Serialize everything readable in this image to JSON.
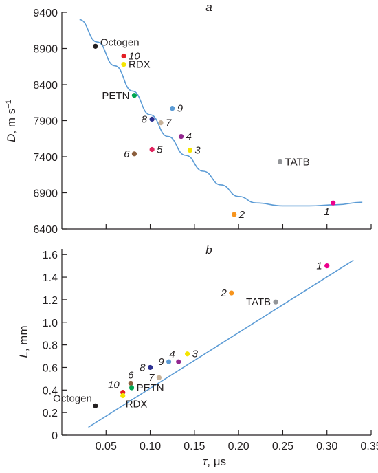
{
  "colors": {
    "curve": "#5b9bd5",
    "axis": "#231f20"
  },
  "chart_data": [
    {
      "type": "scatter",
      "panel_label": "a",
      "xlabel": "",
      "ylabel_parts": {
        "var": "D",
        "unit": ", m s",
        "exp": "−1"
      },
      "xlim": [
        0.0,
        0.35
      ],
      "ylim": [
        6400,
        9400
      ],
      "y_ticks": [
        6400,
        6900,
        7400,
        7900,
        8400,
        8900,
        9400
      ],
      "show_x_tick_labels": false,
      "series": [
        {
          "points": [
            {
              "label": "Octogen",
              "x": 0.038,
              "y": 8930,
              "color": "#231f20",
              "label_pos": "right-up"
            },
            {
              "label": "10",
              "x": 0.07,
              "y": 8795,
              "color": "#e31e24",
              "label_pos": "right"
            },
            {
              "label": "RDX",
              "x": 0.07,
              "y": 8680,
              "color": "#f5e500",
              "label_pos": "right"
            },
            {
              "label": "PETN",
              "x": 0.082,
              "y": 8250,
              "color": "#00a651",
              "label_pos": "left"
            },
            {
              "label": "9",
              "x": 0.125,
              "y": 8070,
              "color": "#5b9bd5",
              "label_pos": "right"
            },
            {
              "label": "8",
              "x": 0.102,
              "y": 7920,
              "color": "#2e3192",
              "label_pos": "left"
            },
            {
              "label": "7",
              "x": 0.112,
              "y": 7870,
              "color": "#c7b299",
              "label_pos": "right"
            },
            {
              "label": "4",
              "x": 0.135,
              "y": 7680,
              "color": "#92278f",
              "label_pos": "right"
            },
            {
              "label": "3",
              "x": 0.145,
              "y": 7490,
              "color": "#f5e500",
              "label_pos": "right"
            },
            {
              "label": "5",
              "x": 0.102,
              "y": 7500,
              "color": "#e0245e",
              "label_pos": "right"
            },
            {
              "label": "6",
              "x": 0.082,
              "y": 7440,
              "color": "#8b5e3c",
              "label_pos": "left"
            },
            {
              "label": "TATB",
              "x": 0.247,
              "y": 7330,
              "color": "#939598",
              "label_pos": "right"
            },
            {
              "label": "2",
              "x": 0.195,
              "y": 6600,
              "color": "#f7941d",
              "label_pos": "right"
            },
            {
              "label": "1",
              "x": 0.307,
              "y": 6760,
              "color": "#ec008c",
              "label_pos": "below-left"
            }
          ]
        }
      ],
      "fit_curve": {
        "x": [
          0.02,
          0.04,
          0.06,
          0.08,
          0.1,
          0.12,
          0.14,
          0.16,
          0.18,
          0.2,
          0.22,
          0.25,
          0.28,
          0.31,
          0.34
        ],
        "y": [
          9300,
          8990,
          8660,
          8310,
          7980,
          7680,
          7420,
          7200,
          7010,
          6850,
          6760,
          6720,
          6720,
          6735,
          6770
        ]
      }
    },
    {
      "type": "scatter",
      "panel_label": "b",
      "xlabel_parts": {
        "var": "τ",
        "unit": ", μs"
      },
      "ylabel_parts": {
        "var": "L",
        "unit": ", mm"
      },
      "xlim": [
        0.0,
        0.35
      ],
      "ylim": [
        0,
        1.65
      ],
      "x_ticks": [
        0.05,
        0.1,
        0.15,
        0.2,
        0.25,
        0.3,
        0.35
      ],
      "x_tick_labels": [
        "0.05",
        "0.10",
        "0.15",
        "0.20",
        "0.25",
        "0.30",
        "0.35"
      ],
      "y_ticks": [
        0,
        0.2,
        0.4,
        0.6,
        0.8,
        1.0,
        1.2,
        1.4,
        1.6
      ],
      "y_tick_labels": [
        "0",
        "0.2",
        "0.4",
        "0.6",
        "0.8",
        "1.0",
        "1.2",
        "1.4",
        "1.6"
      ],
      "series": [
        {
          "points": [
            {
              "label": "1",
              "x": 0.3,
              "y": 1.5,
              "color": "#ec008c",
              "label_pos": "left"
            },
            {
              "label": "2",
              "x": 0.192,
              "y": 1.26,
              "color": "#f7941d",
              "label_pos": "left"
            },
            {
              "label": "TATB",
              "x": 0.242,
              "y": 1.18,
              "color": "#939598",
              "label_pos": "left"
            },
            {
              "label": "3",
              "x": 0.142,
              "y": 0.72,
              "color": "#f5e500",
              "label_pos": "right"
            },
            {
              "label": "4",
              "x": 0.132,
              "y": 0.65,
              "color": "#92278f",
              "label_pos": "above-left"
            },
            {
              "label": "9",
              "x": 0.121,
              "y": 0.65,
              "color": "#5b9bd5",
              "label_pos": "left"
            },
            {
              "label": "8",
              "x": 0.1,
              "y": 0.6,
              "color": "#2e3192",
              "label_pos": "left"
            },
            {
              "label": "7",
              "x": 0.11,
              "y": 0.51,
              "color": "#c7b299",
              "label_pos": "left"
            },
            {
              "label": "6",
              "x": 0.078,
              "y": 0.46,
              "color": "#8b5e3c",
              "label_pos": "above"
            },
            {
              "label": "10",
              "x": 0.069,
              "y": 0.38,
              "color": "#e31e24",
              "label_pos": "above-left"
            },
            {
              "label": "PETN",
              "x": 0.079,
              "y": 0.42,
              "color": "#00a651",
              "label_pos": "right"
            },
            {
              "label": "RDX",
              "x": 0.069,
              "y": 0.35,
              "color": "#f5e500",
              "label_pos": "below-right"
            },
            {
              "label": "Octogen",
              "x": 0.038,
              "y": 0.26,
              "color": "#231f20",
              "label_pos": "above-left"
            }
          ]
        }
      ],
      "fit_line": {
        "x": [
          0.03,
          0.33
        ],
        "y": [
          0.07,
          1.55
        ]
      }
    }
  ]
}
